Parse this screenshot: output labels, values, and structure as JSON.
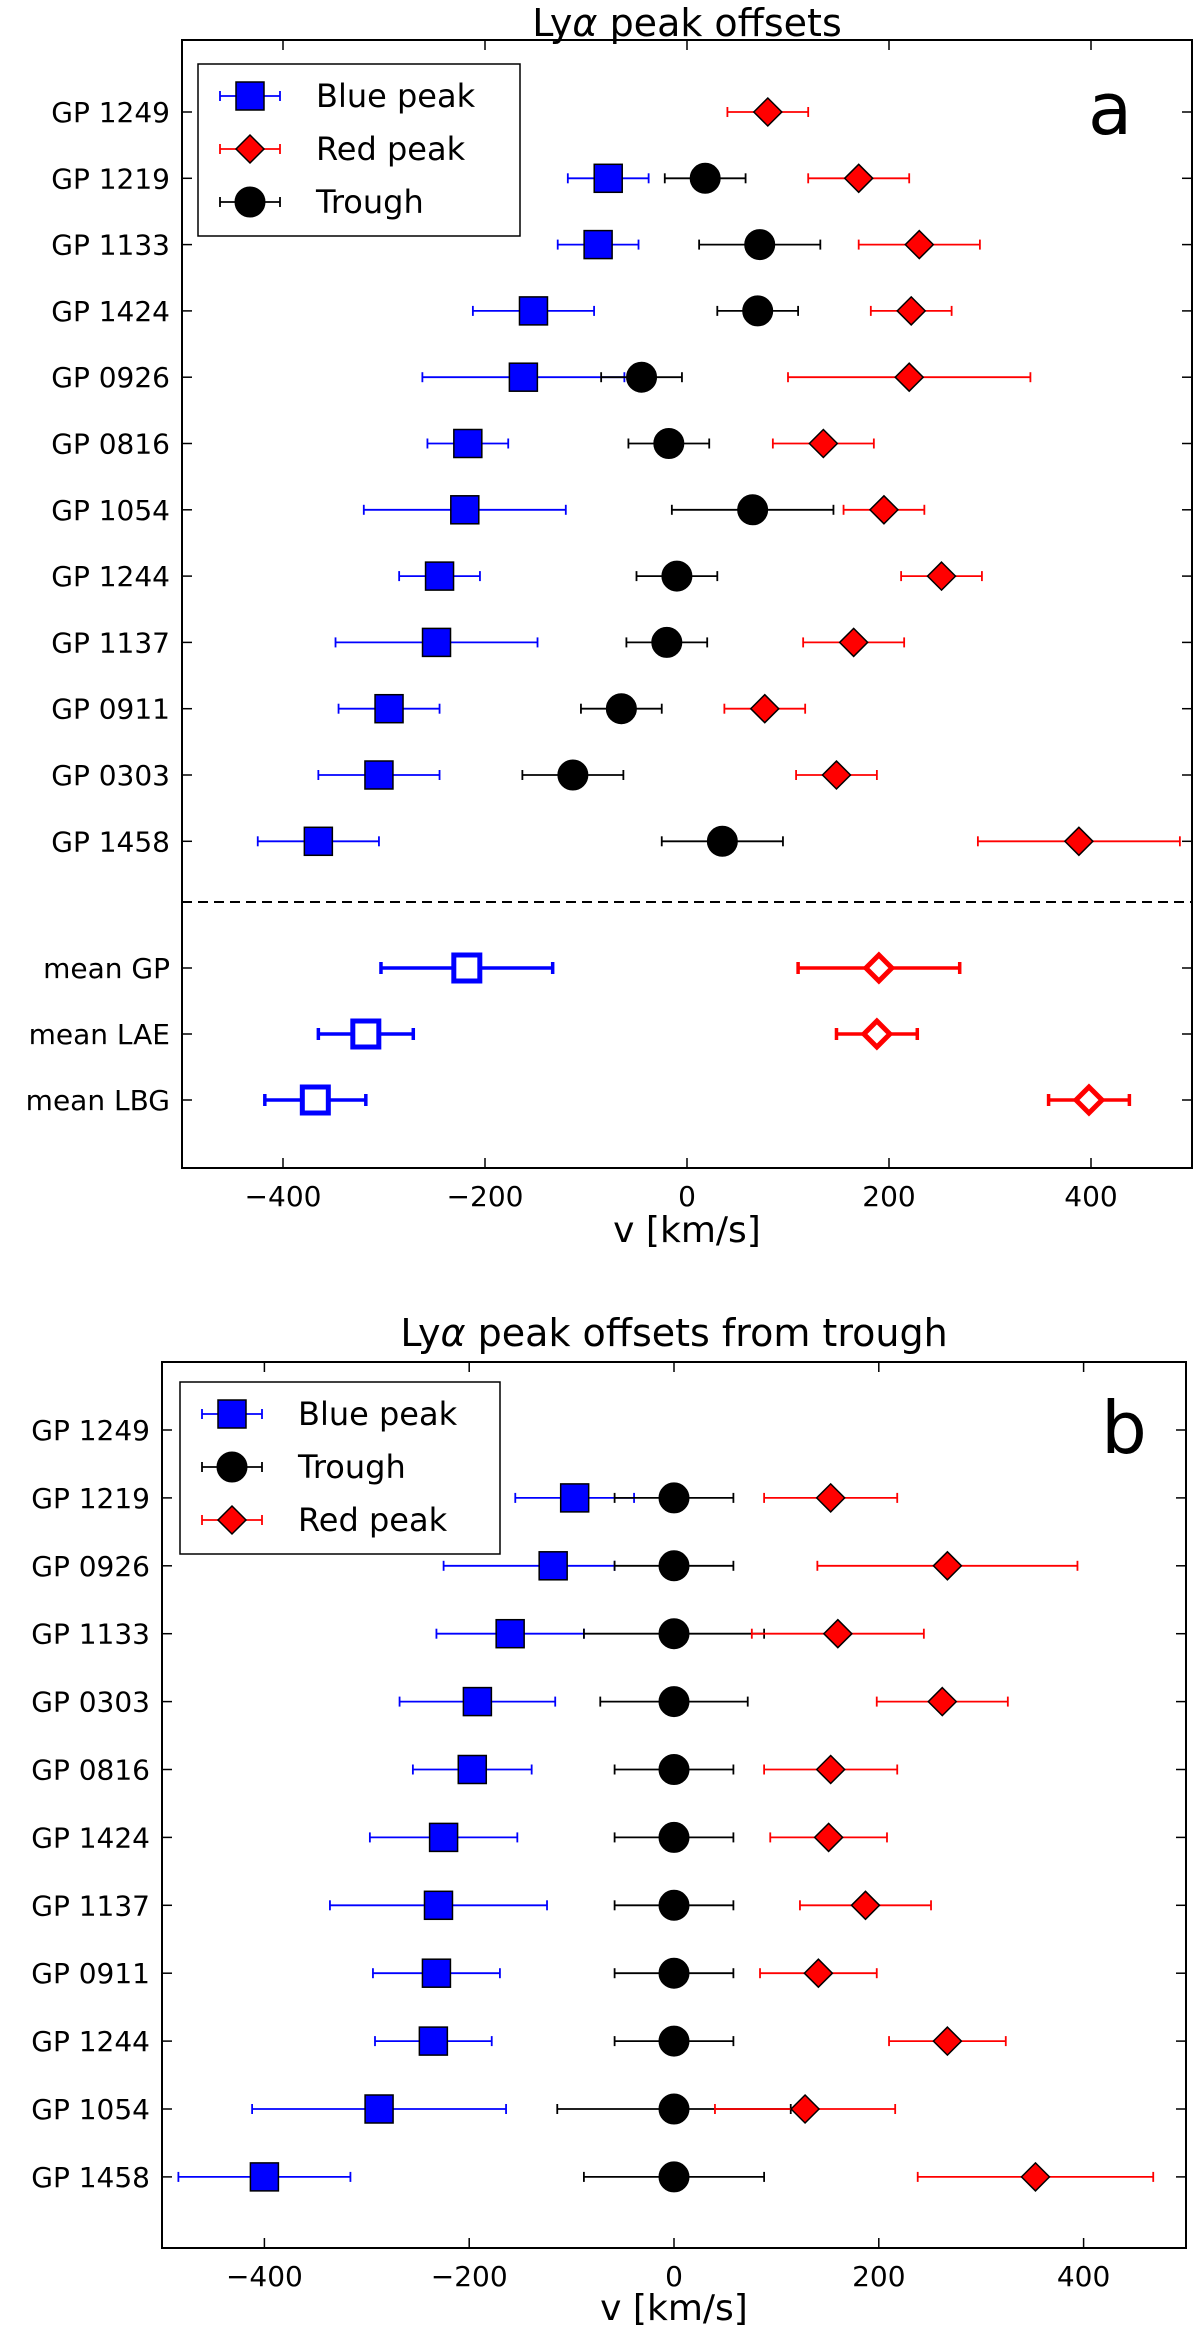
{
  "chart_data": [
    {
      "type": "scatter",
      "title": "Lyα peak offsets",
      "panel_label": "a",
      "xlabel": "v [km/s]",
      "xlim": [
        -500,
        500
      ],
      "xticks": [
        -400,
        -200,
        0,
        200,
        400
      ],
      "tick_labels": [
        "−400",
        "−200",
        "0",
        "200",
        "400"
      ],
      "legend": {
        "location": "upper-left",
        "entries": [
          "Blue peak",
          "Red peak",
          "Trough"
        ]
      },
      "separator_after_row": 12,
      "colors": {
        "blue": "#0000ff",
        "red": "#ff0000",
        "trough": "#000000"
      },
      "rows": [
        {
          "label": "GP 1249",
          "blue": null,
          "trough": null,
          "red": {
            "v": 80,
            "lo": 40,
            "hi": 120
          }
        },
        {
          "label": "GP 1219",
          "blue": {
            "v": -78,
            "lo": -118,
            "hi": -38
          },
          "trough": {
            "v": 18,
            "lo": -22,
            "hi": 58
          },
          "red": {
            "v": 170,
            "lo": 120,
            "hi": 220
          }
        },
        {
          "label": "GP 1133",
          "blue": {
            "v": -88,
            "lo": -128,
            "hi": -48
          },
          "trough": {
            "v": 72,
            "lo": 12,
            "hi": 132
          },
          "red": {
            "v": 230,
            "lo": 170,
            "hi": 290
          }
        },
        {
          "label": "GP 1424",
          "blue": {
            "v": -152,
            "lo": -212,
            "hi": -92
          },
          "trough": {
            "v": 70,
            "lo": 30,
            "hi": 110
          },
          "red": {
            "v": 222,
            "lo": 182,
            "hi": 262
          }
        },
        {
          "label": "GP 0926",
          "blue": {
            "v": -162,
            "lo": -262,
            "hi": -62
          },
          "trough": {
            "v": -45,
            "lo": -85,
            "hi": -5
          },
          "red": {
            "v": 220,
            "lo": 100,
            "hi": 340
          }
        },
        {
          "label": "GP 0816",
          "blue": {
            "v": -217,
            "lo": -257,
            "hi": -177
          },
          "trough": {
            "v": -18,
            "lo": -58,
            "hi": 22
          },
          "red": {
            "v": 135,
            "lo": 85,
            "hi": 185
          }
        },
        {
          "label": "GP 1054",
          "blue": {
            "v": -220,
            "lo": -320,
            "hi": -120
          },
          "trough": {
            "v": 65,
            "lo": -15,
            "hi": 145
          },
          "red": {
            "v": 195,
            "lo": 155,
            "hi": 235
          }
        },
        {
          "label": "GP 1244",
          "blue": {
            "v": -245,
            "lo": -285,
            "hi": -205
          },
          "trough": {
            "v": -10,
            "lo": -50,
            "hi": 30
          },
          "red": {
            "v": 252,
            "lo": 212,
            "hi": 292
          }
        },
        {
          "label": "GP 1137",
          "blue": {
            "v": -248,
            "lo": -348,
            "hi": -148
          },
          "trough": {
            "v": -20,
            "lo": -60,
            "hi": 20
          },
          "red": {
            "v": 165,
            "lo": 115,
            "hi": 215
          }
        },
        {
          "label": "GP 0911",
          "blue": {
            "v": -295,
            "lo": -345,
            "hi": -245
          },
          "trough": {
            "v": -65,
            "lo": -105,
            "hi": -25
          },
          "red": {
            "v": 77,
            "lo": 37,
            "hi": 117
          }
        },
        {
          "label": "GP 0303",
          "blue": {
            "v": -305,
            "lo": -365,
            "hi": -245
          },
          "trough": {
            "v": -113,
            "lo": -163,
            "hi": -63
          },
          "red": {
            "v": 148,
            "lo": 108,
            "hi": 188
          }
        },
        {
          "label": "GP 1458",
          "blue": {
            "v": -365,
            "lo": -425,
            "hi": -305
          },
          "trough": {
            "v": 35,
            "lo": -25,
            "hi": 95
          },
          "red": {
            "v": 388,
            "lo": 288,
            "hi": 488
          }
        },
        {
          "label": "mean  GP",
          "mean": true,
          "blue": {
            "v": -218,
            "lo": -303,
            "hi": -133
          },
          "trough": null,
          "red": {
            "v": 190,
            "lo": 110,
            "hi": 270
          }
        },
        {
          "label": "mean LAE",
          "mean": true,
          "blue": {
            "v": -318,
            "lo": -365,
            "hi": -271
          },
          "trough": null,
          "red": {
            "v": 188,
            "lo": 148,
            "hi": 228
          }
        },
        {
          "label": "mean LBG",
          "mean": true,
          "blue": {
            "v": -368,
            "lo": -418,
            "hi": -318
          },
          "trough": null,
          "red": {
            "v": 398,
            "lo": 358,
            "hi": 438
          }
        }
      ]
    },
    {
      "type": "scatter",
      "title": "Lyα peak offsets from trough",
      "panel_label": "b",
      "xlabel": "v [km/s]",
      "xlim": [
        -500,
        500
      ],
      "xticks": [
        -400,
        -200,
        0,
        200,
        400
      ],
      "tick_labels": [
        "−400",
        "−200",
        "0",
        "200",
        "400"
      ],
      "legend": {
        "location": "upper-left",
        "entries": [
          "Blue peak",
          "Trough",
          "Red peak"
        ]
      },
      "colors": {
        "blue": "#0000ff",
        "red": "#ff0000",
        "trough": "#000000"
      },
      "rows": [
        {
          "label": "GP 1249",
          "blue": null,
          "trough": null,
          "red": null
        },
        {
          "label": "GP 1219",
          "blue": {
            "v": -97,
            "lo": -155,
            "hi": -39
          },
          "trough": {
            "v": 0,
            "lo": -58,
            "hi": 58
          },
          "red": {
            "v": 153,
            "lo": 88,
            "hi": 218
          }
        },
        {
          "label": "GP 0926",
          "blue": {
            "v": -118,
            "lo": -225,
            "hi": -58
          },
          "trough": {
            "v": 0,
            "lo": -58,
            "hi": 58
          },
          "red": {
            "v": 267,
            "lo": 140,
            "hi": 394
          }
        },
        {
          "label": "GP 1133",
          "blue": {
            "v": -160,
            "lo": -232,
            "hi": -88
          },
          "trough": {
            "v": 0,
            "lo": -88,
            "hi": 88
          },
          "red": {
            "v": 160,
            "lo": 76,
            "hi": 244
          }
        },
        {
          "label": "GP 0303",
          "blue": {
            "v": -192,
            "lo": -268,
            "hi": -116
          },
          "trough": {
            "v": 0,
            "lo": -72,
            "hi": 72
          },
          "red": {
            "v": 262,
            "lo": 198,
            "hi": 326
          }
        },
        {
          "label": "GP 0816",
          "blue": {
            "v": -197,
            "lo": -255,
            "hi": -139
          },
          "trough": {
            "v": 0,
            "lo": -58,
            "hi": 58
          },
          "red": {
            "v": 153,
            "lo": 88,
            "hi": 218
          }
        },
        {
          "label": "GP 1424",
          "blue": {
            "v": -225,
            "lo": -297,
            "hi": -153
          },
          "trough": {
            "v": 0,
            "lo": -58,
            "hi": 58
          },
          "red": {
            "v": 151,
            "lo": 94,
            "hi": 208
          }
        },
        {
          "label": "GP 1137",
          "blue": {
            "v": -230,
            "lo": -336,
            "hi": -124
          },
          "trough": {
            "v": 0,
            "lo": -58,
            "hi": 58
          },
          "red": {
            "v": 187,
            "lo": 123,
            "hi": 251
          }
        },
        {
          "label": "GP 0911",
          "blue": {
            "v": -232,
            "lo": -294,
            "hi": -170
          },
          "trough": {
            "v": 0,
            "lo": -58,
            "hi": 58
          },
          "red": {
            "v": 141,
            "lo": 84,
            "hi": 198
          }
        },
        {
          "label": "GP 1244",
          "blue": {
            "v": -235,
            "lo": -292,
            "hi": -178
          },
          "trough": {
            "v": 0,
            "lo": -58,
            "hi": 58
          },
          "red": {
            "v": 267,
            "lo": 210,
            "hi": 324
          }
        },
        {
          "label": "GP 1054",
          "blue": {
            "v": -288,
            "lo": -412,
            "hi": -164
          },
          "trough": {
            "v": 0,
            "lo": -114,
            "hi": 114
          },
          "red": {
            "v": 128,
            "lo": 40,
            "hi": 216
          }
        },
        {
          "label": "GP 1458",
          "blue": {
            "v": -400,
            "lo": -484,
            "hi": -316
          },
          "trough": {
            "v": 0,
            "lo": -88,
            "hi": 88
          },
          "red": {
            "v": 353,
            "lo": 238,
            "hi": 468
          }
        }
      ]
    }
  ]
}
